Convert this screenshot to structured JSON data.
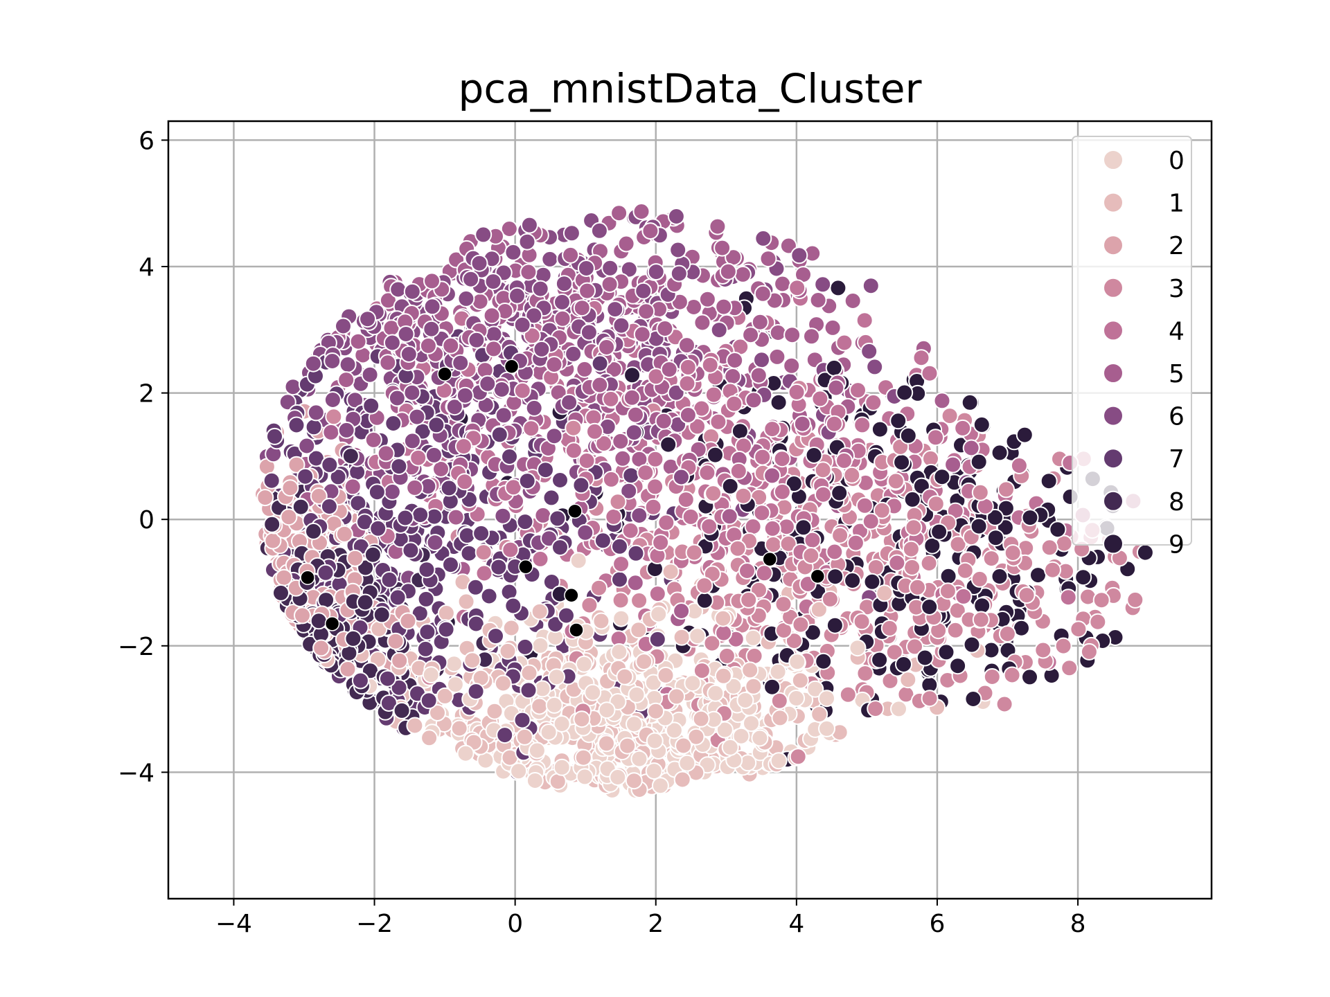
{
  "chart_data": {
    "type": "scatter",
    "title": "pca_mnistData_Cluster",
    "xlabel": "",
    "ylabel": "",
    "xlim": [
      -4.93,
      9.9
    ],
    "ylim": [
      -6.0,
      6.3
    ],
    "xticks": [
      -4,
      -2,
      0,
      2,
      4,
      6,
      8
    ],
    "yticks": [
      -4,
      -2,
      0,
      2,
      4,
      6
    ],
    "xtick_labels": [
      "−4",
      "−2",
      "0",
      "2",
      "4",
      "6",
      "8"
    ],
    "ytick_labels": [
      "−4",
      "−2",
      "0",
      "2",
      "4",
      "6"
    ],
    "grid": true,
    "legend": {
      "placement": "top-right",
      "entries": [
        "0",
        "1",
        "2",
        "3",
        "4",
        "5",
        "6",
        "7",
        "8",
        "9"
      ]
    },
    "series": [
      {
        "name": "0",
        "color": "#ecd2cc",
        "center": [
          1.6,
          -3.6
        ],
        "spread": [
          1.6,
          0.9
        ],
        "count": 380
      },
      {
        "name": "1",
        "color": "#e6bcbb",
        "center": [
          0.8,
          -3.4
        ],
        "spread": [
          2.2,
          1.1
        ],
        "count": 300
      },
      {
        "name": "2",
        "color": "#dca3ab",
        "center": [
          -3.6,
          -1.2
        ],
        "spread": [
          0.7,
          1.0
        ],
        "count": 220
      },
      {
        "name": "3",
        "color": "#cf889f",
        "center": [
          5.2,
          -0.9
        ],
        "spread": [
          2.3,
          1.2
        ],
        "count": 380
      },
      {
        "name": "4",
        "color": "#bf7298",
        "center": [
          2.6,
          0.8
        ],
        "spread": [
          2.2,
          1.2
        ],
        "count": 380
      },
      {
        "name": "5",
        "color": "#a75e8f",
        "center": [
          0.9,
          2.8
        ],
        "spread": [
          2.3,
          1.4
        ],
        "count": 420
      },
      {
        "name": "6",
        "color": "#874c84",
        "center": [
          -0.6,
          3.0
        ],
        "spread": [
          2.2,
          1.4
        ],
        "count": 420
      },
      {
        "name": "7",
        "color": "#643b70",
        "center": [
          -1.8,
          -0.5
        ],
        "spread": [
          1.7,
          1.6
        ],
        "count": 380
      },
      {
        "name": "8",
        "color": "#432a52",
        "center": [
          -3.3,
          -2.3
        ],
        "spread": [
          0.8,
          1.0
        ],
        "count": 260
      },
      {
        "name": "9",
        "color": "#2b1b3b",
        "center": [
          5.6,
          -0.2
        ],
        "spread": [
          2.1,
          1.5
        ],
        "count": 300
      }
    ],
    "centroids": {
      "color": "#000000",
      "points": [
        [
          -1.0,
          2.3
        ],
        [
          -0.05,
          2.42
        ],
        [
          0.85,
          0.13
        ],
        [
          0.15,
          -0.75
        ],
        [
          0.8,
          -1.2
        ],
        [
          0.87,
          -1.75
        ],
        [
          -2.95,
          -0.92
        ],
        [
          -2.6,
          -1.65
        ],
        [
          3.62,
          -0.63
        ],
        [
          4.3,
          -0.9
        ]
      ]
    }
  }
}
